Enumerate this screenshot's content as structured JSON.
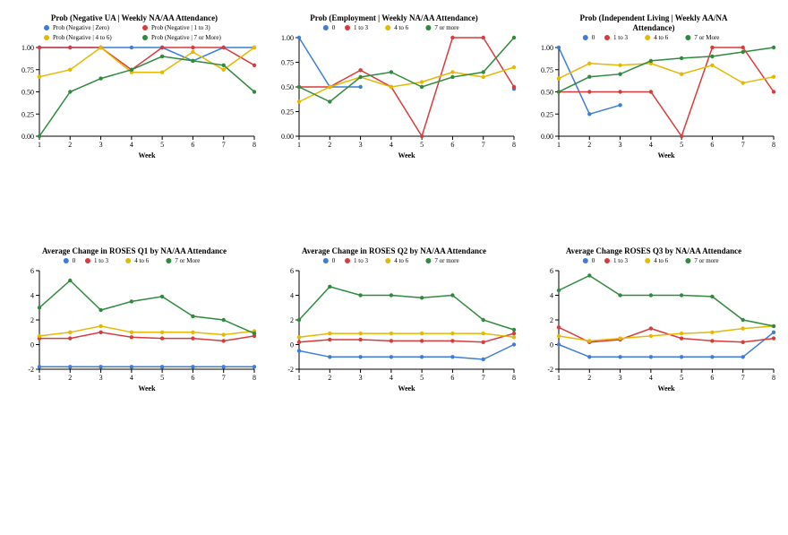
{
  "global": {
    "background_color": "#ffffff",
    "axis_color": "#000000",
    "tick_fontsize": 8,
    "title_fontsize": 9,
    "axis_label_fontsize": 8,
    "legend_fontsize": 7,
    "marker_radius": 2.2,
    "line_width": 1.5,
    "series_colors": {
      "zero": "#3b7dd8",
      "one_to_three": "#d83b3b",
      "four_to_six": "#e6b800",
      "seven_or_more": "#2e8b3d"
    }
  },
  "charts": [
    {
      "id": "prob_neg_ua",
      "type": "line",
      "title": "Prob (Negative UA | Weekly NA/AA Attendance)",
      "xlabel": "Week",
      "x": [
        1,
        2,
        3,
        4,
        5,
        6,
        7,
        8
      ],
      "ylim": [
        0,
        1.0
      ],
      "yticks": [
        0.0,
        0.25,
        0.5,
        0.75,
        1.0
      ],
      "ytick_labels": [
        "0.00",
        "0.25",
        "0.50",
        "0.75",
        "1.00"
      ],
      "legend_style": "long",
      "series": [
        {
          "key": "zero",
          "label": "Prob (Negative | Zero)",
          "values": [
            1.0,
            1.0,
            1.0,
            1.0,
            1.0,
            0.85,
            1.0,
            1.0
          ]
        },
        {
          "key": "one_to_three",
          "label": "Prob (Negative | 1 to 3)",
          "values": [
            1.0,
            1.0,
            1.0,
            0.75,
            1.0,
            1.0,
            1.0,
            0.8
          ]
        },
        {
          "key": "four_to_six",
          "label": "Prob (Negative | 4 to 6)",
          "values": [
            0.67,
            0.75,
            1.0,
            0.72,
            0.72,
            0.95,
            0.75,
            1.0
          ]
        },
        {
          "key": "seven_or_more",
          "label": "Prob (Negative | 7 or More)",
          "values": [
            0.0,
            0.5,
            0.65,
            0.75,
            0.9,
            0.85,
            0.8,
            0.5
          ]
        }
      ]
    },
    {
      "id": "prob_employment",
      "type": "line",
      "title": "Prob (Employment | Weekly NA/AA Attendance)",
      "xlabel": "Week",
      "x": [
        1,
        2,
        3,
        4,
        5,
        6,
        7,
        8
      ],
      "ylim": [
        0,
        1.0
      ],
      "yticks": [
        0.0,
        0.25,
        0.5,
        0.75,
        1.0
      ],
      "ytick_labels": [
        "0.00",
        "0.25",
        "0.50",
        "0.75",
        "1.00"
      ],
      "legend_style": "short",
      "series": [
        {
          "key": "zero",
          "label": "0",
          "values": [
            1.0,
            0.5,
            0.5,
            null,
            null,
            null,
            null,
            0.48
          ]
        },
        {
          "key": "one_to_three",
          "label": "1 to 3",
          "values": [
            0.5,
            0.5,
            0.67,
            0.5,
            0.0,
            1.0,
            1.0,
            0.5
          ]
        },
        {
          "key": "four_to_six",
          "label": "4 to 6",
          "values": [
            0.35,
            0.5,
            0.6,
            0.5,
            0.55,
            0.65,
            0.6,
            0.7
          ]
        },
        {
          "key": "seven_or_more",
          "label": "7 or more",
          "values": [
            0.5,
            0.35,
            0.6,
            0.65,
            0.5,
            0.6,
            0.65,
            1.0
          ]
        }
      ]
    },
    {
      "id": "prob_indep_living",
      "type": "line",
      "title_lines": [
        "Prob (Independent Living | Weekly AA/NA",
        "Attendance)"
      ],
      "xlabel": "Week",
      "x": [
        1,
        2,
        3,
        4,
        5,
        6,
        7,
        8
      ],
      "ylim": [
        0,
        1.0
      ],
      "yticks": [
        0.0,
        0.25,
        0.5,
        0.75,
        1.0
      ],
      "ytick_labels": [
        "0.00",
        "0.25",
        "0.50",
        "0.75",
        "1.00"
      ],
      "legend_style": "short",
      "series": [
        {
          "key": "zero",
          "label": "0",
          "values": [
            1.0,
            0.25,
            0.35,
            null,
            null,
            null,
            null,
            null
          ]
        },
        {
          "key": "one_to_three",
          "label": "1 to 3",
          "values": [
            0.5,
            0.5,
            0.5,
            0.5,
            0.0,
            1.0,
            1.0,
            0.5
          ]
        },
        {
          "key": "four_to_six",
          "label": "4 to 6",
          "values": [
            0.65,
            0.82,
            0.8,
            0.82,
            0.7,
            0.8,
            0.6,
            0.67
          ]
        },
        {
          "key": "seven_or_more",
          "label": "7 or More",
          "values": [
            0.5,
            0.67,
            0.7,
            0.85,
            0.88,
            0.9,
            0.95,
            1.0
          ]
        }
      ]
    },
    {
      "id": "roses_q1",
      "type": "line",
      "title": "Average Change in ROSES Q1 by NA/AA Attendance",
      "xlabel": "Week",
      "x": [
        1,
        2,
        3,
        4,
        5,
        6,
        7,
        8
      ],
      "ylim": [
        -2,
        6
      ],
      "yticks": [
        -2,
        0,
        2,
        4,
        6
      ],
      "ytick_labels": [
        "-2",
        "0",
        "2",
        "4",
        "6"
      ],
      "legend_style": "short",
      "series": [
        {
          "key": "zero",
          "label": "0",
          "values": [
            -1.8,
            -1.8,
            -1.8,
            -1.8,
            -1.8,
            -1.8,
            -1.8,
            -1.8
          ]
        },
        {
          "key": "one_to_three",
          "label": "1 to 3",
          "values": [
            0.5,
            0.5,
            1.0,
            0.6,
            0.5,
            0.5,
            0.3,
            0.7
          ]
        },
        {
          "key": "four_to_six",
          "label": "4 to 6",
          "values": [
            0.7,
            1.0,
            1.5,
            1.0,
            1.0,
            1.0,
            0.8,
            1.1
          ]
        },
        {
          "key": "seven_or_more",
          "label": "7 or More",
          "values": [
            3.0,
            5.2,
            2.8,
            3.5,
            3.9,
            2.3,
            2.0,
            0.9
          ]
        }
      ]
    },
    {
      "id": "roses_q2",
      "type": "line",
      "title": "Average Change in ROSES Q2 by NA/AA Attendance",
      "xlabel": "Week",
      "x": [
        1,
        2,
        3,
        4,
        5,
        6,
        7,
        8
      ],
      "ylim": [
        -2,
        6
      ],
      "yticks": [
        -2,
        0,
        2,
        4,
        6
      ],
      "ytick_labels": [
        "-2",
        "0",
        "2",
        "4",
        "6"
      ],
      "legend_style": "short",
      "series": [
        {
          "key": "zero",
          "label": "0",
          "values": [
            -0.5,
            -1.0,
            -1.0,
            -1.0,
            -1.0,
            -1.0,
            -1.2,
            0.0
          ]
        },
        {
          "key": "one_to_three",
          "label": "1 to 3",
          "values": [
            0.2,
            0.4,
            0.4,
            0.3,
            0.3,
            0.3,
            0.2,
            0.9
          ]
        },
        {
          "key": "four_to_six",
          "label": "4 to 6",
          "values": [
            0.6,
            0.9,
            0.9,
            0.9,
            0.9,
            0.9,
            0.9,
            0.6
          ]
        },
        {
          "key": "seven_or_more",
          "label": "7 or more",
          "values": [
            2.0,
            4.7,
            4.0,
            4.0,
            3.8,
            4.0,
            2.0,
            1.2
          ]
        }
      ]
    },
    {
      "id": "roses_q3",
      "type": "line",
      "title": "Average Change ROSES Q3 by NA/AA Attendance",
      "xlabel": "Week",
      "x": [
        1,
        2,
        3,
        4,
        5,
        6,
        7,
        8
      ],
      "ylim": [
        -2,
        6
      ],
      "yticks": [
        -2,
        0,
        2,
        4,
        6
      ],
      "ytick_labels": [
        "-2",
        "0",
        "2",
        "4",
        "6"
      ],
      "legend_style": "short",
      "series": [
        {
          "key": "zero",
          "label": "0",
          "values": [
            0.0,
            -1.0,
            -1.0,
            -1.0,
            -1.0,
            -1.0,
            -1.0,
            1.0
          ]
        },
        {
          "key": "one_to_three",
          "label": "1 to 3",
          "values": [
            1.4,
            0.2,
            0.4,
            1.3,
            0.5,
            0.3,
            0.2,
            0.5
          ]
        },
        {
          "key": "four_to_six",
          "label": "4 to 6",
          "values": [
            0.7,
            0.3,
            0.5,
            0.7,
            0.9,
            1.0,
            1.3,
            1.5
          ]
        },
        {
          "key": "seven_or_more",
          "label": "7 or more",
          "values": [
            4.4,
            5.6,
            4.0,
            4.0,
            4.0,
            3.9,
            2.0,
            1.5
          ]
        }
      ]
    }
  ]
}
